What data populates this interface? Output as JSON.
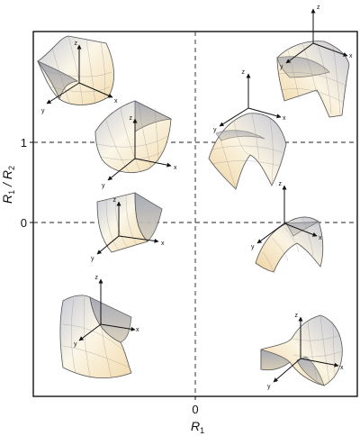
{
  "x_axis": {
    "label": "R",
    "label_sub": "1",
    "zero_tick": "0"
  },
  "y_axis": {
    "label_main": "R",
    "label_sub1": "1",
    "label_sep": " / R",
    "label_sub2": "2",
    "ticks": [
      "1",
      "0"
    ]
  },
  "axis_letters": {
    "x": "x",
    "y": "y",
    "z": "z"
  },
  "colors": {
    "warm": "#f3dcae",
    "light": "#fbf6e8",
    "cool": "#c7cad6",
    "frame": "#111111"
  },
  "surfaces": [
    "paraboloid-top-left",
    "paraboloid-middle-left",
    "cylinder-left",
    "cylinder-bottom-left",
    "dome-top-right",
    "dome-middle-right",
    "ridge-right",
    "saddle-bottom-right"
  ]
}
